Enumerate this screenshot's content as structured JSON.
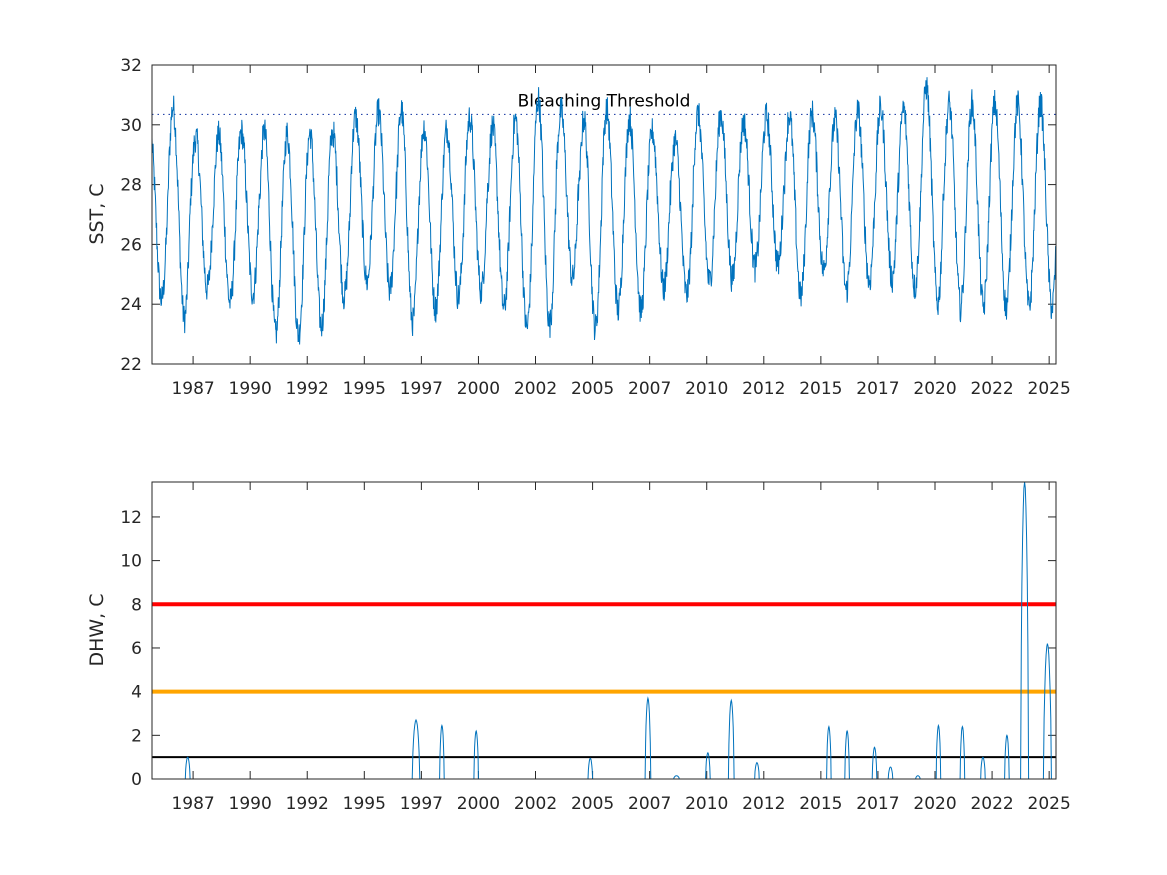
{
  "chart_data": [
    {
      "type": "line",
      "ylabel": "SST, C",
      "xlabel": "",
      "ylim": [
        22,
        32
      ],
      "xlim": [
        1985.4,
        2025.0
      ],
      "yticks": [
        22,
        24,
        26,
        28,
        30,
        32
      ],
      "xticks": [
        {
          "label": "1987",
          "x": 1987.2
        },
        {
          "label": "1990",
          "x": 1989.7
        },
        {
          "label": "1992",
          "x": 1992.2
        },
        {
          "label": "1995",
          "x": 1994.7
        },
        {
          "label": "1997",
          "x": 1997.2
        },
        {
          "label": "2000",
          "x": 1999.7
        },
        {
          "label": "2002",
          "x": 2002.2
        },
        {
          "label": "2005",
          "x": 2004.7
        },
        {
          "label": "2007",
          "x": 2007.2
        },
        {
          "label": "2010",
          "x": 2009.7
        },
        {
          "label": "2012",
          "x": 2012.2
        },
        {
          "label": "2015",
          "x": 2014.7
        },
        {
          "label": "2017",
          "x": 2017.2
        },
        {
          "label": "2020",
          "x": 2019.7
        },
        {
          "label": "2022",
          "x": 2022.2
        },
        {
          "label": "2025",
          "x": 2024.7
        }
      ],
      "threshold": {
        "label": "Bleaching Threshold",
        "value": 30.35,
        "color": "#0b2f9f",
        "style": "dotted"
      },
      "series_color": "#0072bd",
      "seasonal_peaks": [
        30.0,
        30.9,
        29.8,
        29.9,
        30.0,
        30.1,
        30.0,
        30.0,
        30.0,
        30.5,
        30.7,
        30.8,
        30.2,
        30.1,
        30.5,
        30.2,
        30.5,
        31.2,
        30.7,
        30.5,
        30.8,
        30.5,
        30.0,
        29.7,
        30.6,
        30.6,
        30.3,
        30.5,
        30.6,
        30.6,
        30.4,
        30.7,
        30.8,
        30.8,
        31.6,
        31.0
      ],
      "seasonal_troughs": [
        23.9,
        23.2,
        24.3,
        23.8,
        24.1,
        22.7,
        22.7,
        23.0,
        24.0,
        24.5,
        24.2,
        23.1,
        23.6,
        24.0,
        24.2,
        23.6,
        22.9,
        23.0,
        24.6,
        22.9,
        23.5,
        23.5,
        24.3,
        24.1,
        24.5,
        24.6,
        25.0,
        25.1,
        24.0,
        24.9,
        24.2,
        24.5,
        24.6,
        24.3,
        23.7,
        23.6
      ]
    },
    {
      "type": "line",
      "ylabel": "DHW, C",
      "xlabel": "",
      "ylim": [
        0,
        13.6
      ],
      "xlim": [
        1985.4,
        2025.0
      ],
      "yticks": [
        0,
        2,
        4,
        6,
        8,
        10,
        12
      ],
      "xticks": [
        {
          "label": "1987",
          "x": 1987.2
        },
        {
          "label": "1990",
          "x": 1989.7
        },
        {
          "label": "1992",
          "x": 1992.2
        },
        {
          "label": "1995",
          "x": 1994.7
        },
        {
          "label": "1997",
          "x": 1997.2
        },
        {
          "label": "2000",
          "x": 1999.7
        },
        {
          "label": "2002",
          "x": 2002.2
        },
        {
          "label": "2005",
          "x": 2004.7
        },
        {
          "label": "2007",
          "x": 2007.2
        },
        {
          "label": "2010",
          "x": 2009.7
        },
        {
          "label": "2012",
          "x": 2012.2
        },
        {
          "label": "2015",
          "x": 2014.7
        },
        {
          "label": "2017",
          "x": 2017.2
        },
        {
          "label": "2020",
          "x": 2019.7
        },
        {
          "label": "2022",
          "x": 2022.2
        },
        {
          "label": "2025",
          "x": 2024.7
        }
      ],
      "reference_lines": [
        {
          "value": 8,
          "color": "#ff0000"
        },
        {
          "value": 4,
          "color": "#ffa500"
        },
        {
          "value": 1,
          "color": "#000000"
        }
      ],
      "series_color": "#0072bd",
      "events": [
        {
          "start": 1986.86,
          "end": 1987.07,
          "peak": 1.0
        },
        {
          "start": 1996.8,
          "end": 1997.13,
          "peak": 2.7
        },
        {
          "start": 1998.0,
          "end": 1998.2,
          "peak": 2.45
        },
        {
          "start": 1999.5,
          "end": 1999.7,
          "peak": 2.2
        },
        {
          "start": 2004.5,
          "end": 2004.7,
          "peak": 0.95
        },
        {
          "start": 2007.0,
          "end": 2007.25,
          "peak": 3.7
        },
        {
          "start": 2008.25,
          "end": 2008.5,
          "peak": 0.15
        },
        {
          "start": 2009.65,
          "end": 2009.85,
          "peak": 1.2
        },
        {
          "start": 2010.65,
          "end": 2010.9,
          "peak": 3.6
        },
        {
          "start": 2011.8,
          "end": 2012.0,
          "peak": 0.75
        },
        {
          "start": 2014.95,
          "end": 2015.15,
          "peak": 2.4
        },
        {
          "start": 2015.75,
          "end": 2015.95,
          "peak": 2.2
        },
        {
          "start": 2016.95,
          "end": 2017.15,
          "peak": 1.45
        },
        {
          "start": 2017.65,
          "end": 2017.85,
          "peak": 0.55
        },
        {
          "start": 2018.85,
          "end": 2019.05,
          "peak": 0.15
        },
        {
          "start": 2019.75,
          "end": 2019.95,
          "peak": 2.45
        },
        {
          "start": 2020.8,
          "end": 2021.0,
          "peak": 2.4
        },
        {
          "start": 2021.7,
          "end": 2021.9,
          "peak": 1.0
        },
        {
          "start": 2022.75,
          "end": 2022.95,
          "peak": 2.0
        },
        {
          "start": 2023.45,
          "end": 2023.8,
          "peak": 13.6
        },
        {
          "start": 2024.45,
          "end": 2024.8,
          "peak": 6.2
        }
      ]
    }
  ]
}
